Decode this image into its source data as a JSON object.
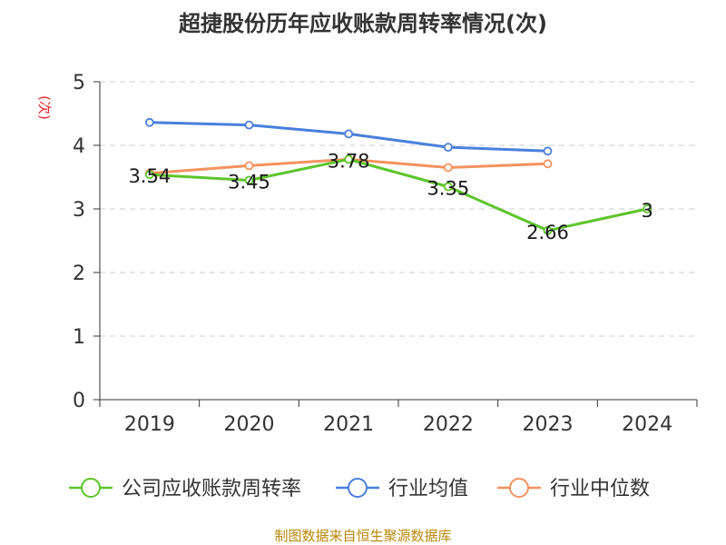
{
  "title": "超捷股份历年应收账款周转率情况(次)",
  "source": "制图数据来自恒生聚源数据库",
  "chart_data": {
    "type": "line",
    "title": "超捷股份历年应收账款周转率情况(次)",
    "ylabel": "(次)",
    "xlabel": "",
    "x": [
      "2019",
      "2020",
      "2021",
      "2022",
      "2023",
      "2024"
    ],
    "ylim": [
      0,
      5
    ],
    "yticks": [
      0,
      1,
      2,
      3,
      4,
      5
    ],
    "grid": true,
    "legend_position": "bottom",
    "series": [
      {
        "name": "公司应收账款周转率",
        "color": "#5cc52a",
        "values": [
          3.54,
          3.45,
          3.78,
          3.35,
          2.66,
          3
        ],
        "labels": [
          "3.54",
          "3.45",
          "3.78",
          "3.35",
          "2.66",
          "3"
        ]
      },
      {
        "name": "行业均值",
        "color": "#4a7fdc",
        "values": [
          4.36,
          4.32,
          4.18,
          3.97,
          3.91,
          null
        ]
      },
      {
        "name": "行业中位数",
        "color": "#f5925e",
        "values": [
          3.56,
          3.68,
          3.78,
          3.65,
          3.71,
          null
        ]
      }
    ]
  }
}
